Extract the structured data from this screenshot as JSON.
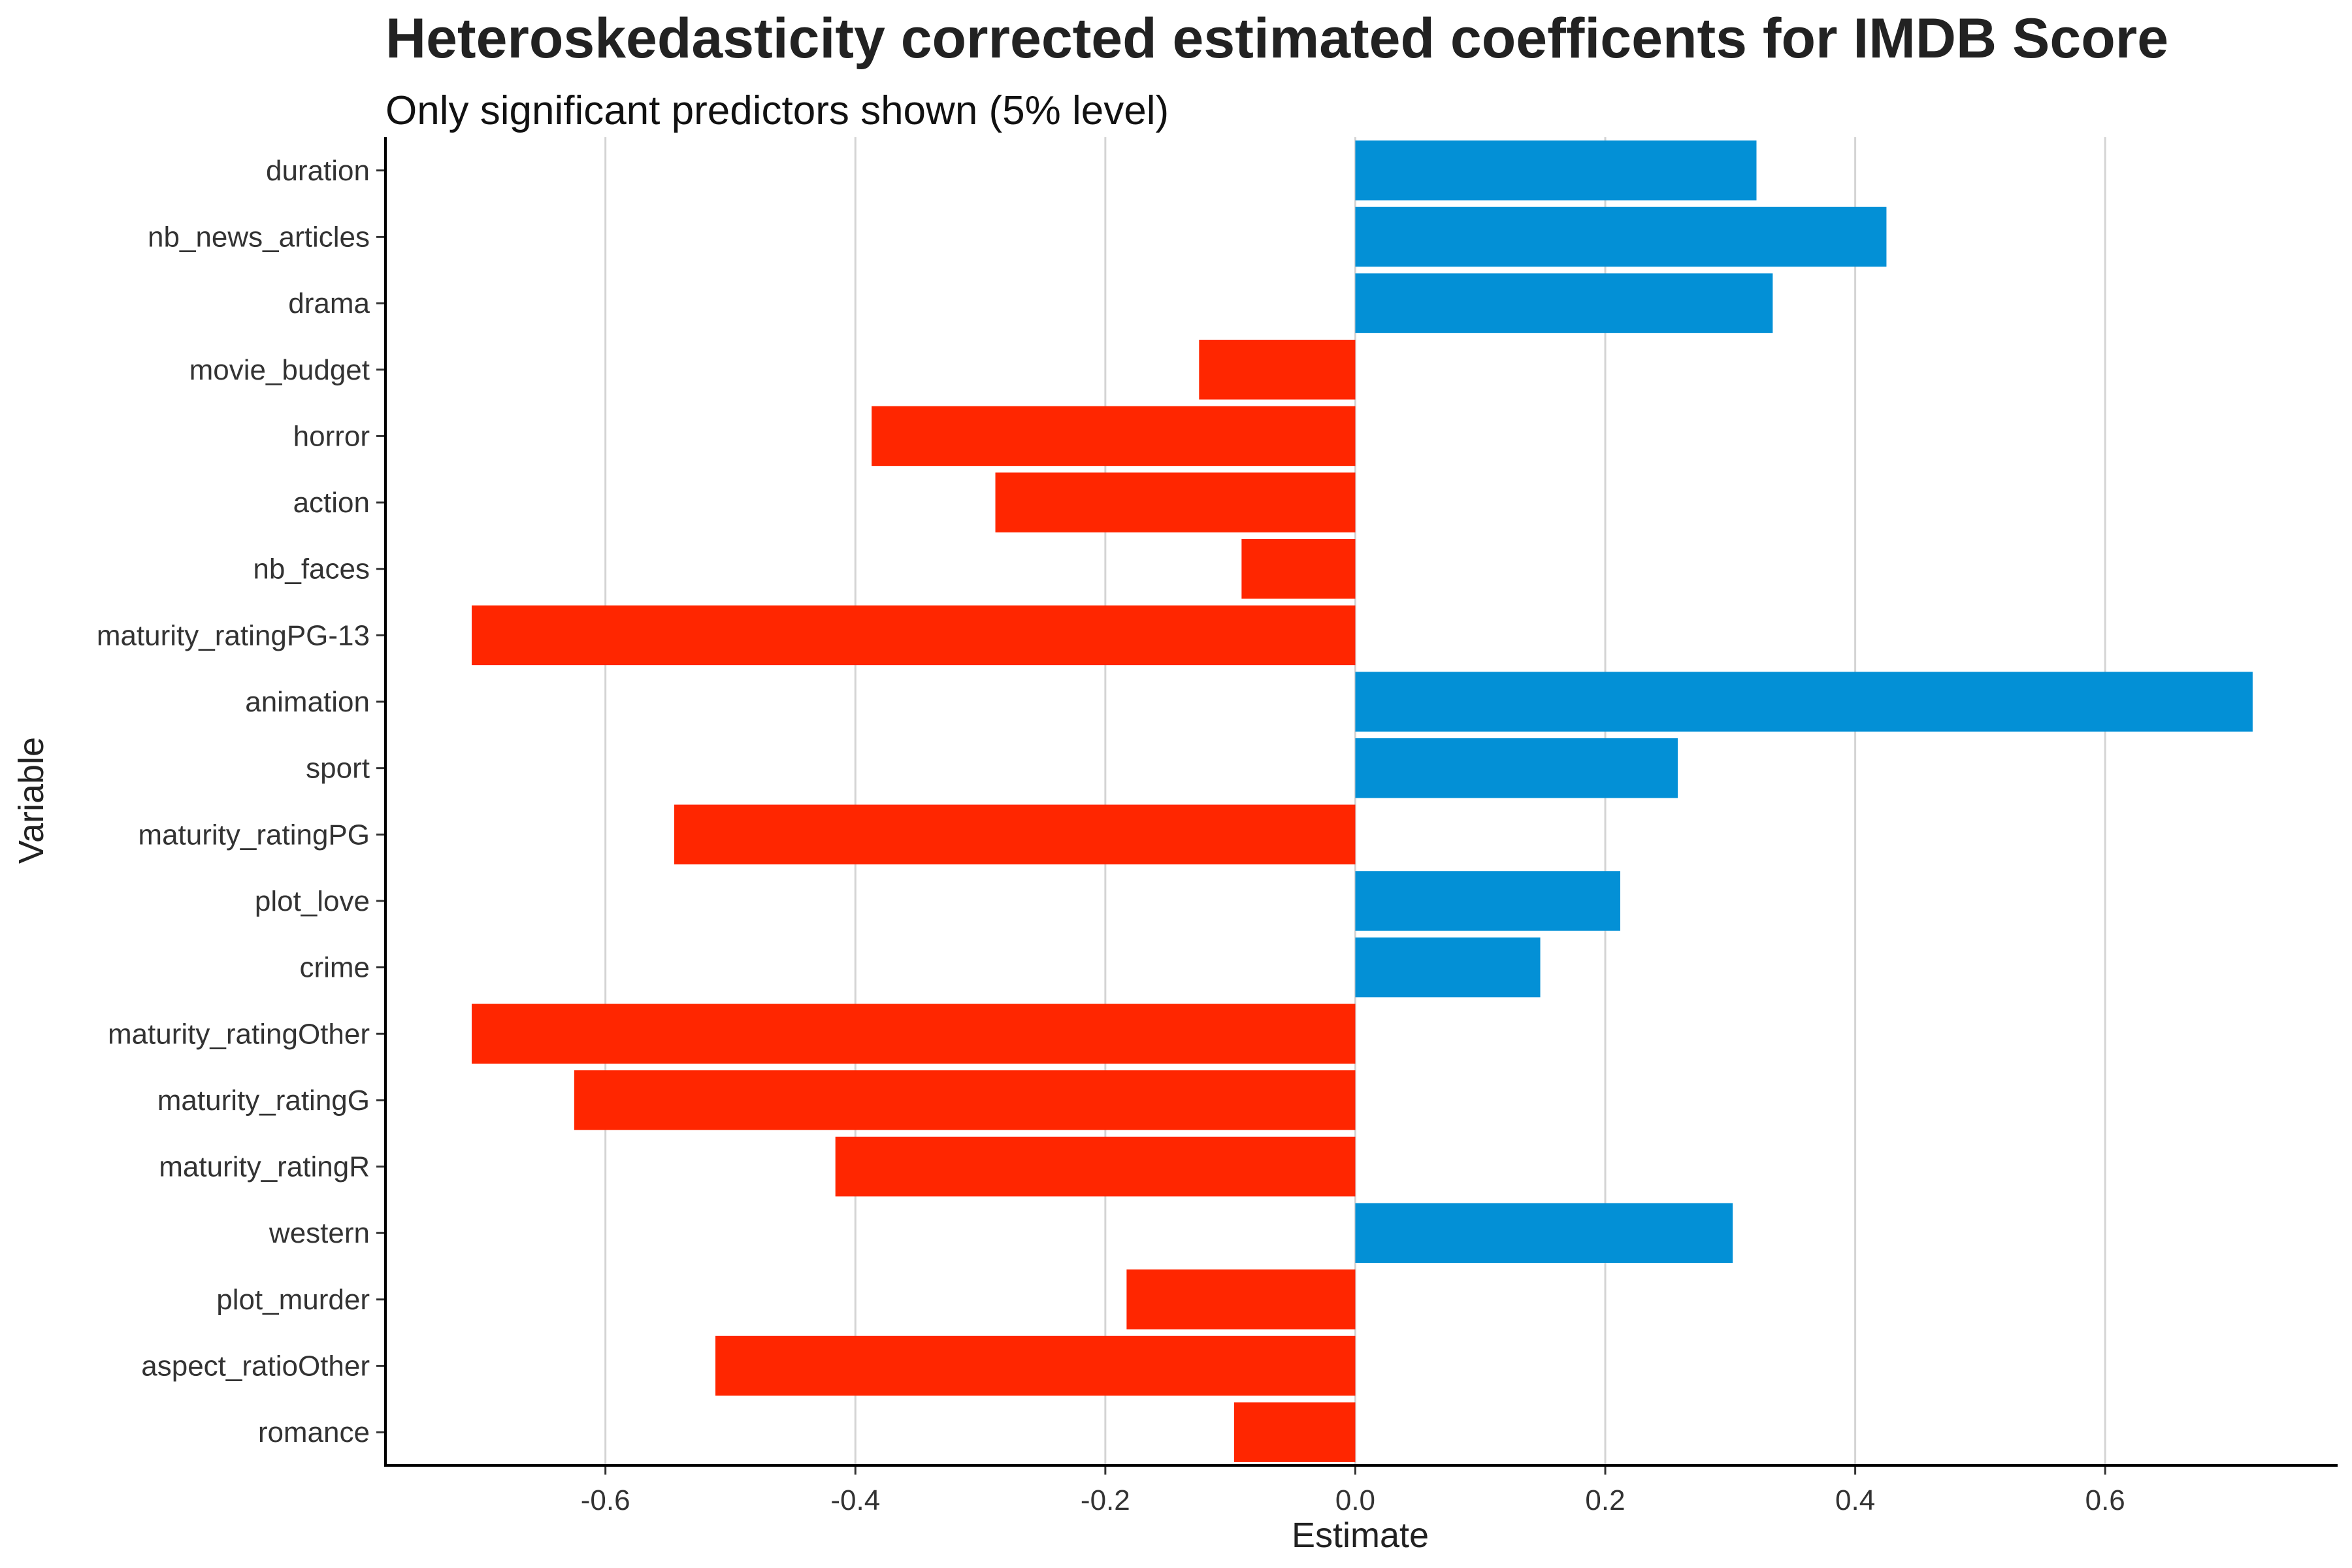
{
  "chart_data": {
    "type": "bar",
    "orientation": "horizontal",
    "title": "Heteroskedasticity corrected estimated coefficents for IMDB Score",
    "subtitle": "Only significant predictors shown (5% level)",
    "xlabel": "Estimate",
    "ylabel": "Variable",
    "xlim": [
      -0.776,
      0.786
    ],
    "xticks": [
      -0.6,
      -0.4,
      -0.2,
      0.0,
      0.2,
      0.4,
      0.6
    ],
    "xtick_labels": [
      "-0.6",
      "-0.4",
      "-0.2",
      "0.0",
      "0.2",
      "0.4",
      "0.6"
    ],
    "grid": "vertical major",
    "legend": "none",
    "colors": {
      "positive": "#0390D6",
      "negative": "#FF2600"
    },
    "categories": [
      "duration",
      "nb_news_articles",
      "drama",
      "movie_budget",
      "horror",
      "action",
      "nb_faces",
      "maturity_ratingPG-13",
      "animation",
      "sport",
      "maturity_ratingPG",
      "plot_love",
      "crime",
      "maturity_ratingOther",
      "maturity_ratingG",
      "maturity_ratingR",
      "western",
      "plot_murder",
      "aspect_ratioOther",
      "romance"
    ],
    "values": [
      0.321,
      0.425,
      0.334,
      -0.125,
      -0.387,
      -0.288,
      -0.091,
      -0.707,
      0.718,
      0.258,
      -0.545,
      0.212,
      0.148,
      -0.707,
      -0.625,
      -0.416,
      0.302,
      -0.183,
      -0.512,
      -0.097
    ]
  }
}
